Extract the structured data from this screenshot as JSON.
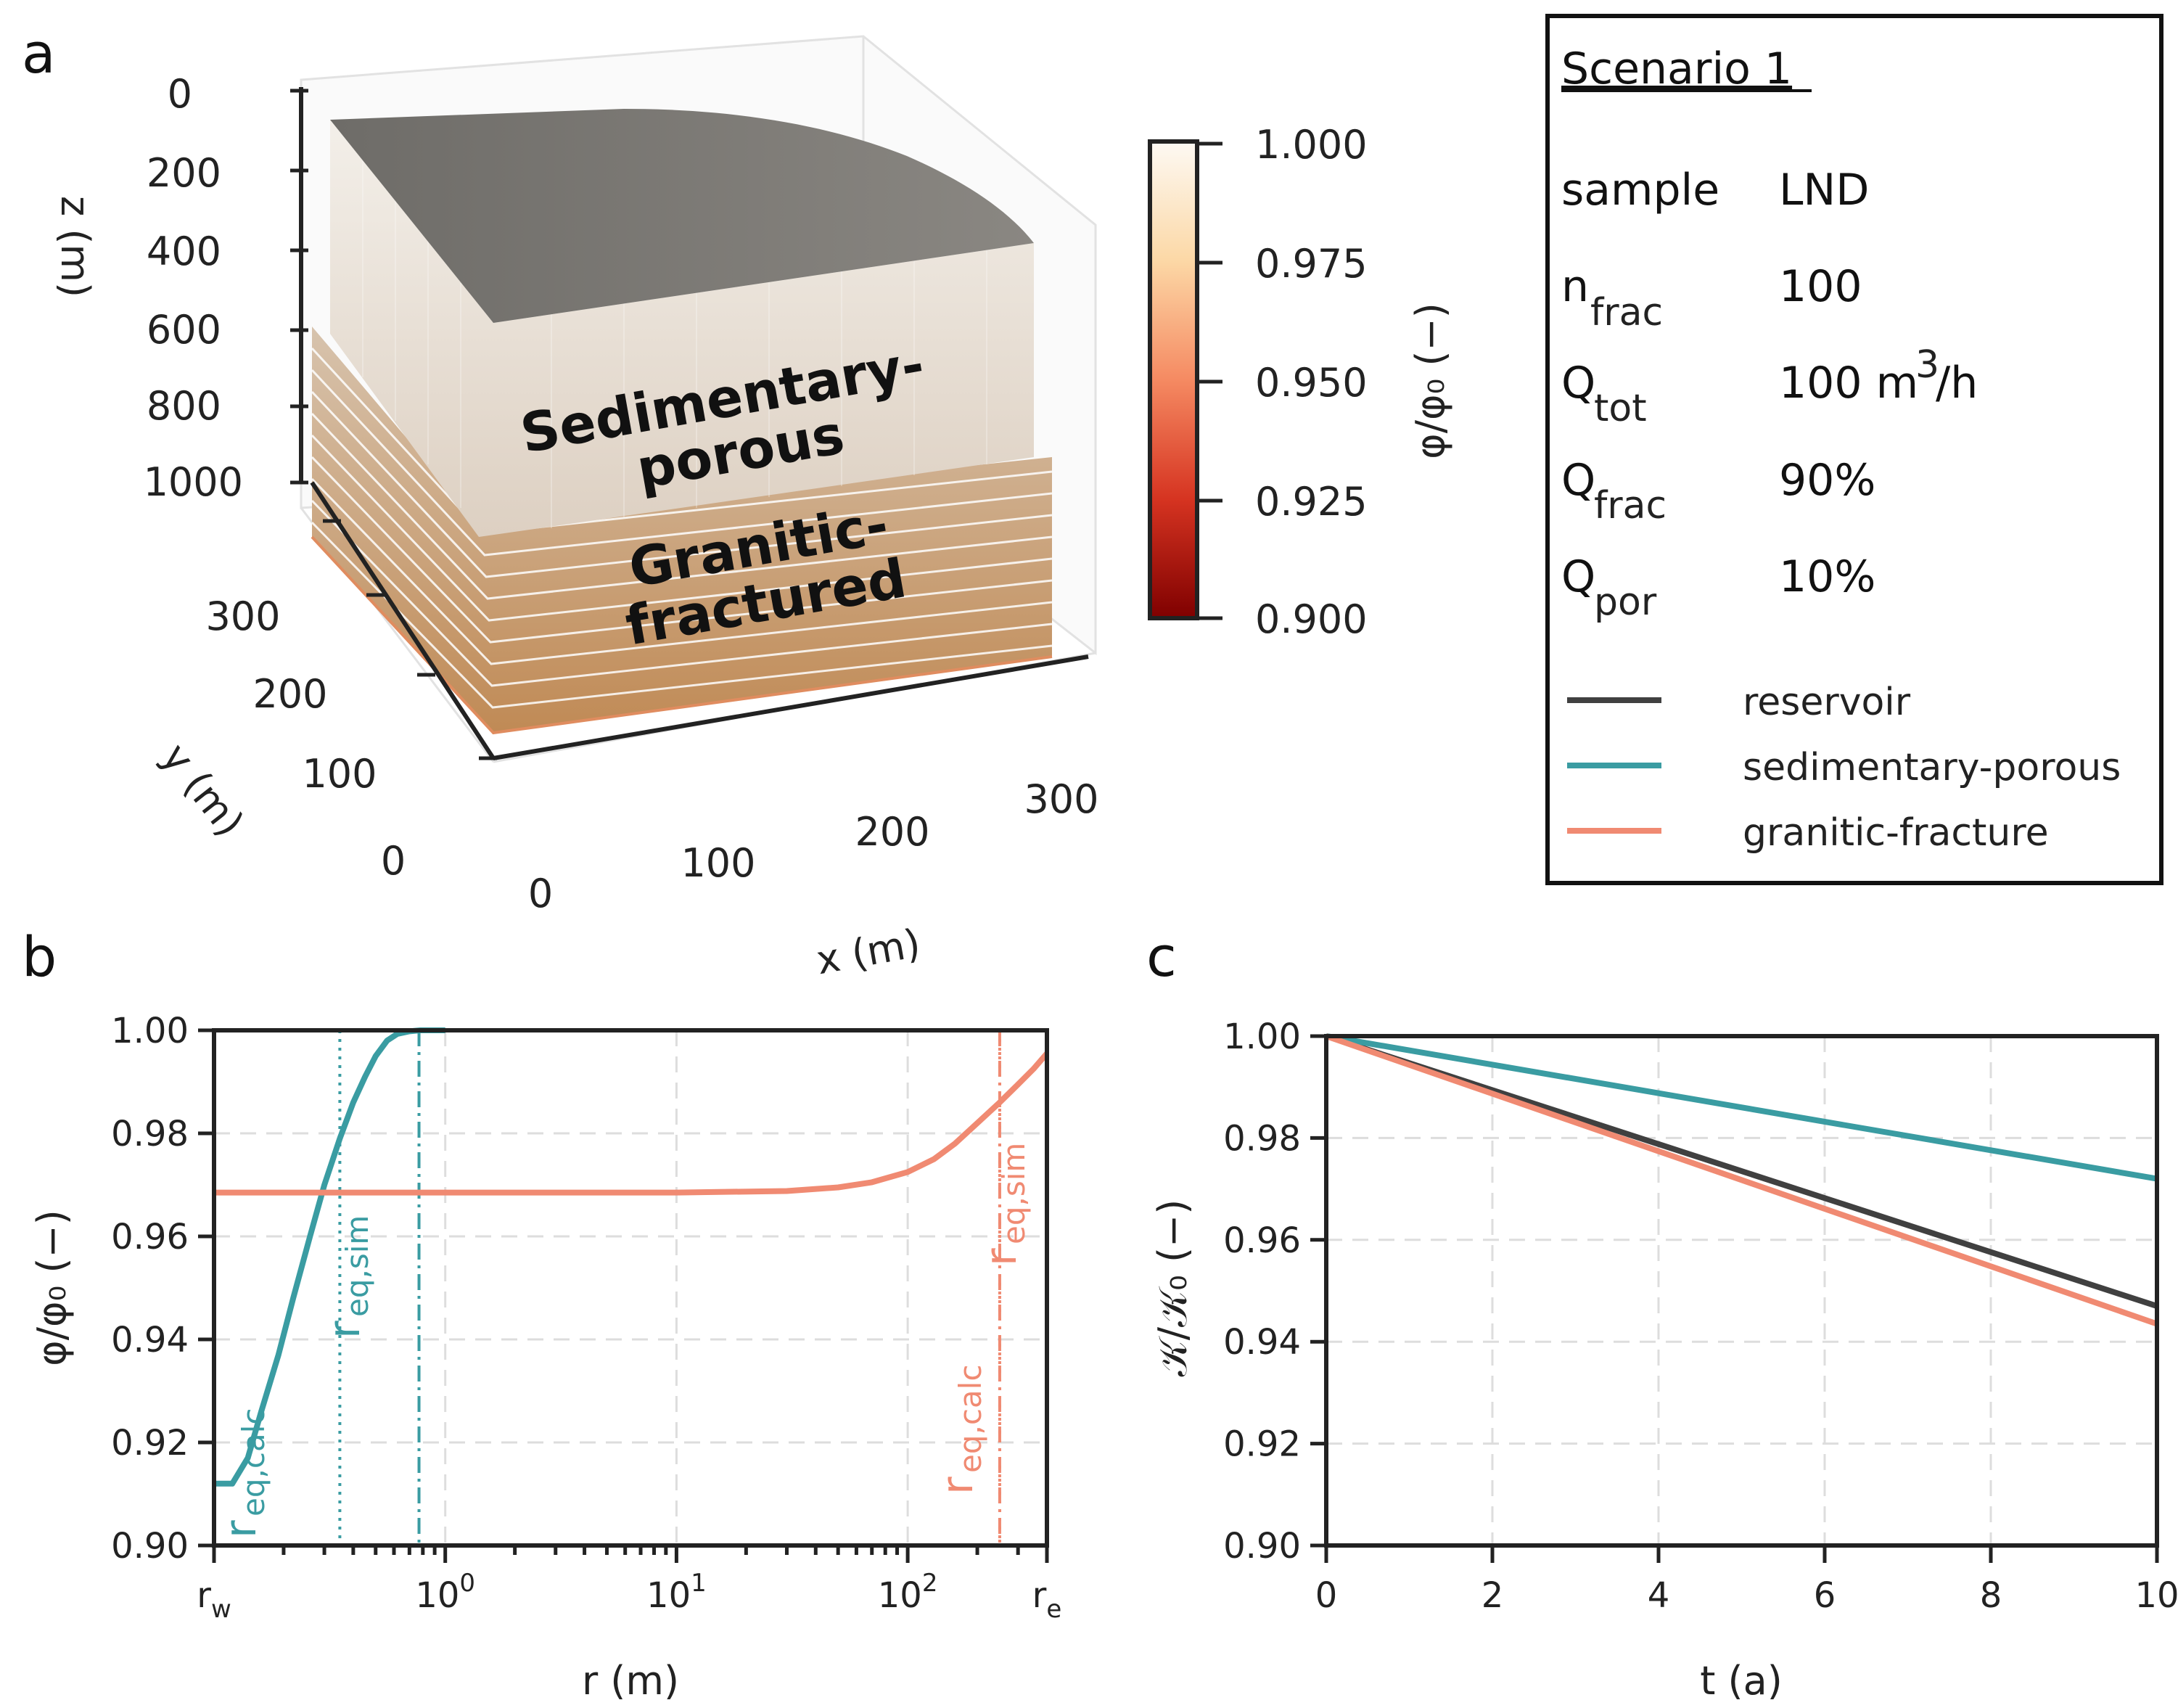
{
  "panels": {
    "a": "a",
    "b": "b",
    "c": "c"
  },
  "panel_a": {
    "z_label": "z (m)",
    "x_label": "x (m)",
    "y_label": "y (m)",
    "z_ticks": [
      "0",
      "200",
      "400",
      "600",
      "800",
      "1000"
    ],
    "y_ticks": [
      "300",
      "200",
      "100",
      "0"
    ],
    "x_ticks": [
      "0",
      "100",
      "200",
      "300"
    ],
    "layer_top_1": "Sedimentary-",
    "layer_top_2": "porous",
    "layer_bot_1": "Granitic-",
    "layer_bot_2": "fractured",
    "colorbar": {
      "ticks": [
        "1.000",
        "0.975",
        "0.950",
        "0.925",
        "0.900"
      ],
      "label": "φ/φ₀ (−)",
      "range": [
        0.9,
        1.0
      ]
    }
  },
  "legend": {
    "title": "Scenario 1",
    "rows": [
      {
        "key": "sample",
        "sub": "",
        "value": "LND",
        "sup": "",
        "tail": ""
      },
      {
        "key": "n",
        "sub": "frac",
        "value": "100",
        "sup": "",
        "tail": ""
      },
      {
        "key": "Q",
        "sub": "tot",
        "value": "100 m",
        "sup": "3",
        "tail": "/h"
      },
      {
        "key": "Q",
        "sub": "frac",
        "value": "90%",
        "sup": "",
        "tail": ""
      },
      {
        "key": "Q",
        "sub": "por",
        "value": "10%",
        "sup": "",
        "tail": ""
      }
    ],
    "series": [
      {
        "name": "reservoir",
        "color": "#404040"
      },
      {
        "name": "sedimentary-porous",
        "color": "#3a9ca2"
      },
      {
        "name": "granitic-fracture",
        "color": "#f08a72"
      }
    ]
  },
  "chart_data": [
    {
      "id": "b",
      "type": "line",
      "xscale": "log",
      "xlim": [
        0.1,
        400
      ],
      "ylim": [
        0.9,
        1.0
      ],
      "xlabel": "r (m)",
      "ylabel": "φ/φ₀ (−)",
      "yticks": [
        "0.90",
        "0.92",
        "0.94",
        "0.96",
        "0.98",
        "1.00"
      ],
      "ytick_values": [
        0.9,
        0.92,
        0.94,
        0.96,
        0.98,
        1.0
      ],
      "xticks": [
        {
          "value": 0.1,
          "label": "r",
          "sub": "w"
        },
        {
          "value": 1,
          "label": "10",
          "sup": "0"
        },
        {
          "value": 10,
          "label": "10",
          "sup": "1"
        },
        {
          "value": 100,
          "label": "10",
          "sup": "2"
        },
        {
          "value": 400,
          "label": "r",
          "sub": "e"
        }
      ],
      "series": [
        {
          "name": "sedimentary-porous",
          "color": "#3a9ca2",
          "x": [
            0.1,
            0.12,
            0.14,
            0.16,
            0.19,
            0.22,
            0.26,
            0.3,
            0.35,
            0.4,
            0.45,
            0.5,
            0.56,
            0.62,
            0.7,
            0.78,
            0.86,
            0.95,
            1.0
          ],
          "y": [
            0.912,
            0.912,
            0.917,
            0.926,
            0.937,
            0.948,
            0.96,
            0.97,
            0.979,
            0.986,
            0.991,
            0.995,
            0.998,
            0.9993,
            0.9998,
            1.0,
            1.0,
            1.0,
            1.0
          ]
        },
        {
          "name": "granitic-fracture",
          "color": "#f08a72",
          "x": [
            0.1,
            1,
            10,
            30,
            50,
            70,
            100,
            130,
            160,
            200,
            250,
            300,
            350,
            400
          ],
          "y": [
            0.9685,
            0.9685,
            0.9685,
            0.9688,
            0.9695,
            0.9705,
            0.9725,
            0.975,
            0.978,
            0.982,
            0.986,
            0.9895,
            0.9925,
            0.9955
          ]
        }
      ],
      "vlines": [
        {
          "x": 0.35,
          "color": "#3a9ca2",
          "style": "dotted",
          "label": "r",
          "sub": "eq,calc"
        },
        {
          "x": 0.77,
          "color": "#3a9ca2",
          "style": "dashdot",
          "label": "r",
          "sub": "eq,sim"
        },
        {
          "x": 250,
          "color": "#f08a72",
          "style": "dotted",
          "label": "r",
          "sub": "eq,calc"
        },
        {
          "x": 250,
          "color": "#f08a72",
          "style": "dashdot",
          "label": "r",
          "sub": "eq,sim"
        }
      ]
    },
    {
      "id": "c",
      "type": "line",
      "xlim": [
        0,
        10
      ],
      "ylim": [
        0.9,
        1.0
      ],
      "xlabel": "t (a)",
      "ylabel": "𝒦/𝒦₀ (−)",
      "xticks": [
        "0",
        "2",
        "4",
        "6",
        "8",
        "10"
      ],
      "xtick_values": [
        0,
        2,
        4,
        6,
        8,
        10
      ],
      "yticks": [
        "0.90",
        "0.92",
        "0.94",
        "0.96",
        "0.98",
        "1.00"
      ],
      "ytick_values": [
        0.9,
        0.92,
        0.94,
        0.96,
        0.98,
        1.0
      ],
      "series": [
        {
          "name": "reservoir",
          "color": "#404040",
          "x": [
            0,
            10
          ],
          "y": [
            1.0,
            0.947
          ]
        },
        {
          "name": "sedimentary-porous",
          "color": "#3a9ca2",
          "x": [
            0,
            10
          ],
          "y": [
            1.0,
            0.972
          ]
        },
        {
          "name": "granitic-fracture",
          "color": "#f08a72",
          "x": [
            0,
            10
          ],
          "y": [
            1.0,
            0.9435
          ]
        }
      ]
    }
  ]
}
